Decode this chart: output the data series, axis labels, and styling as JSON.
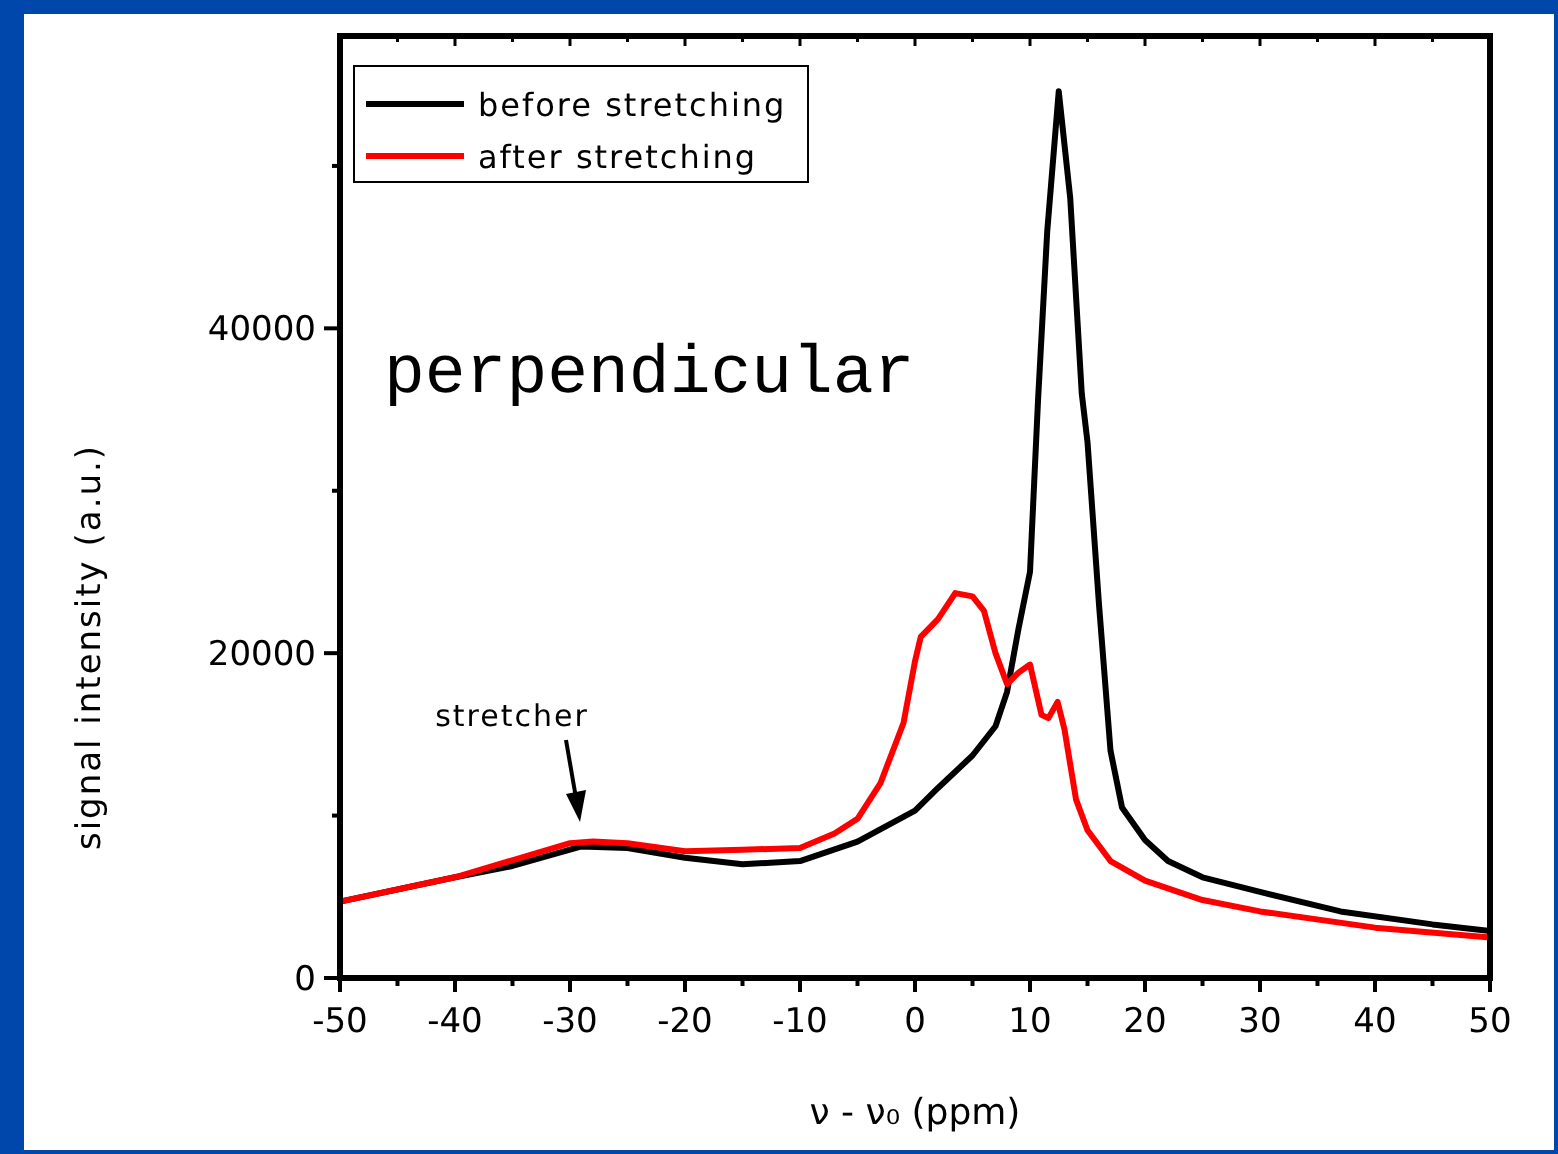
{
  "chart_data": {
    "type": "line",
    "xlabel": "ν - ν₀ (ppm)",
    "ylabel": "signal intensity (a.u.)",
    "xlim": [
      -50,
      50
    ],
    "xticks": [
      -50,
      {
        "value": -45,
        "label": null
      },
      -40,
      {
        "value": -35,
        "label": null
      },
      -30,
      {
        "value": -25,
        "label": null
      },
      -20,
      {
        "value": -15,
        "label": null
      },
      -10,
      {
        "value": -5,
        "label": null
      },
      0,
      {
        "value": 5,
        "label": null
      },
      10,
      {
        "value": 15,
        "label": null
      },
      20,
      {
        "value": 25,
        "label": null
      },
      30,
      {
        "value": 35,
        "label": null
      },
      40,
      {
        "value": 45,
        "label": null
      },
      50
    ],
    "ylim": [
      0,
      58000
    ],
    "yticks": [
      0,
      {
        "value": 10000,
        "label": null
      },
      20000,
      {
        "value": 30000,
        "label": null
      },
      40000,
      {
        "value": 50000,
        "label": null
      }
    ],
    "legend": "top left",
    "grid": false,
    "marker": "none",
    "line_style": "solid",
    "series": [
      {
        "name": "before stretching",
        "color": "#000000",
        "x": [
          -50,
          -40,
          -35,
          -30,
          -29,
          -25,
          -20,
          -15,
          -10,
          -5,
          0,
          2,
          5,
          7,
          8,
          9,
          10,
          10.7,
          11.5,
          12.5,
          13.5,
          14.5,
          15,
          16,
          17,
          18,
          20,
          22,
          25,
          30,
          37,
          45,
          50
        ],
        "values": [
          4700,
          6200,
          6900,
          7900,
          8100,
          8000,
          7400,
          7000,
          7200,
          8400,
          10300,
          11700,
          13700,
          15500,
          17600,
          21500,
          25000,
          35600,
          46000,
          54600,
          48000,
          36000,
          33000,
          23000,
          14000,
          10500,
          8500,
          7200,
          6200,
          5300,
          4100,
          3300,
          2900
        ]
      },
      {
        "name": "after stretching",
        "color": "#ff0000",
        "x": [
          -50,
          -40,
          -30,
          -28,
          -25,
          -20,
          -15,
          -10,
          -7,
          -5,
          -3,
          -1,
          0,
          0.5,
          2,
          3.5,
          5,
          6,
          7,
          8,
          9,
          10,
          11,
          11.6,
          12.4,
          13,
          14,
          15,
          17,
          20,
          25,
          30,
          40,
          50
        ],
        "values": [
          4700,
          6200,
          8300,
          8400,
          8300,
          7800,
          7900,
          8000,
          8900,
          9800,
          12000,
          15700,
          19500,
          21000,
          22100,
          23700,
          23500,
          22600,
          20000,
          18100,
          18800,
          19300,
          16200,
          16000,
          17000,
          15300,
          11000,
          9100,
          7200,
          6000,
          4800,
          4100,
          3100,
          2500
        ]
      }
    ],
    "annotations": [
      "perpendicular",
      "stretcher"
    ]
  }
}
